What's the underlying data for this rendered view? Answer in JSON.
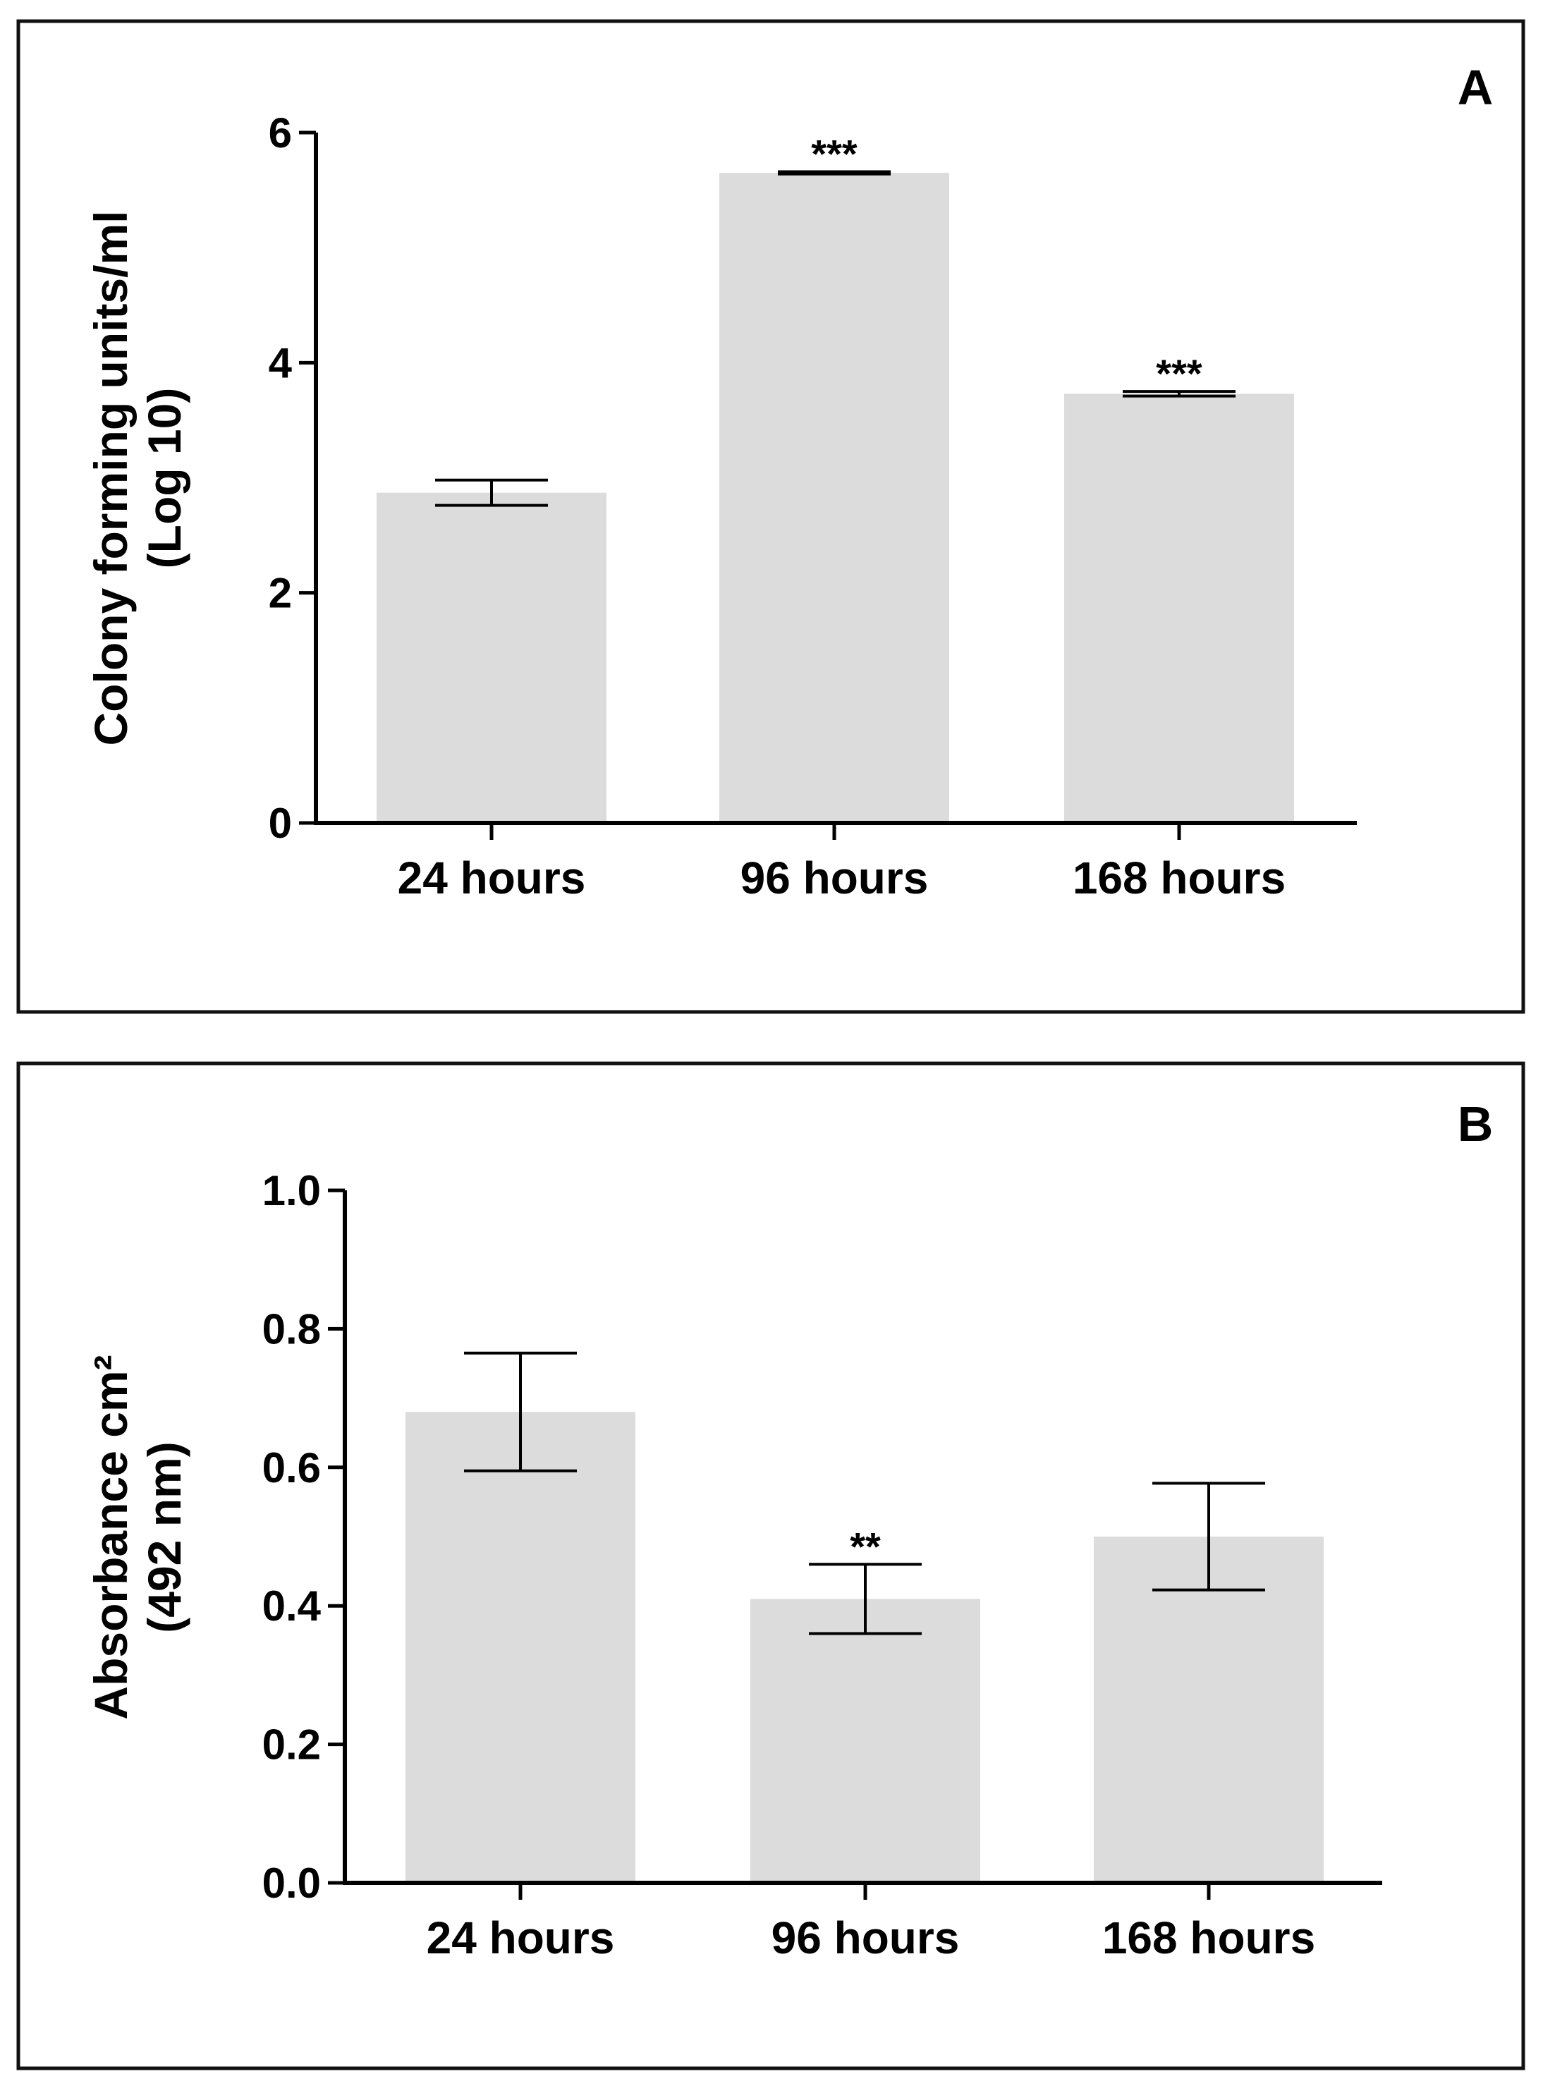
{
  "chart_data": [
    {
      "type": "bar",
      "panel_label": "A",
      "categories": [
        "24 hours",
        "96 hours",
        "168 hours"
      ],
      "values": [
        2.87,
        5.65,
        3.73
      ],
      "errors": [
        0.11,
        0.01,
        0.02
      ],
      "annotations": [
        "",
        "***",
        "***"
      ],
      "ylabel_line1": "Colony forming units/ml",
      "ylabel_line2": "(Log 10)",
      "xlabel": "",
      "ylim": [
        0,
        6
      ],
      "yticks": [
        0,
        2,
        4,
        6
      ],
      "ytick_labels": [
        "0",
        "2",
        "4",
        "6"
      ],
      "bar_color": "#dcdcdc",
      "grid": false
    },
    {
      "type": "bar",
      "panel_label": "B",
      "categories": [
        "24 hours",
        "96 hours",
        "168 hours"
      ],
      "values": [
        0.68,
        0.41,
        0.5
      ],
      "errors": [
        0.085,
        0.05,
        0.077
      ],
      "annotations": [
        "",
        "**",
        ""
      ],
      "ylabel_line1": "Absorbance cm²",
      "ylabel_line2": "(492 nm)",
      "xlabel": "",
      "ylim": [
        0,
        1.0
      ],
      "yticks": [
        0,
        0.2,
        0.4,
        0.6,
        0.8,
        1.0
      ],
      "ytick_labels": [
        "0.0",
        "0.2",
        "0.4",
        "0.6",
        "0.8",
        "1.0"
      ],
      "bar_color": "#dcdcdc",
      "grid": false
    }
  ]
}
